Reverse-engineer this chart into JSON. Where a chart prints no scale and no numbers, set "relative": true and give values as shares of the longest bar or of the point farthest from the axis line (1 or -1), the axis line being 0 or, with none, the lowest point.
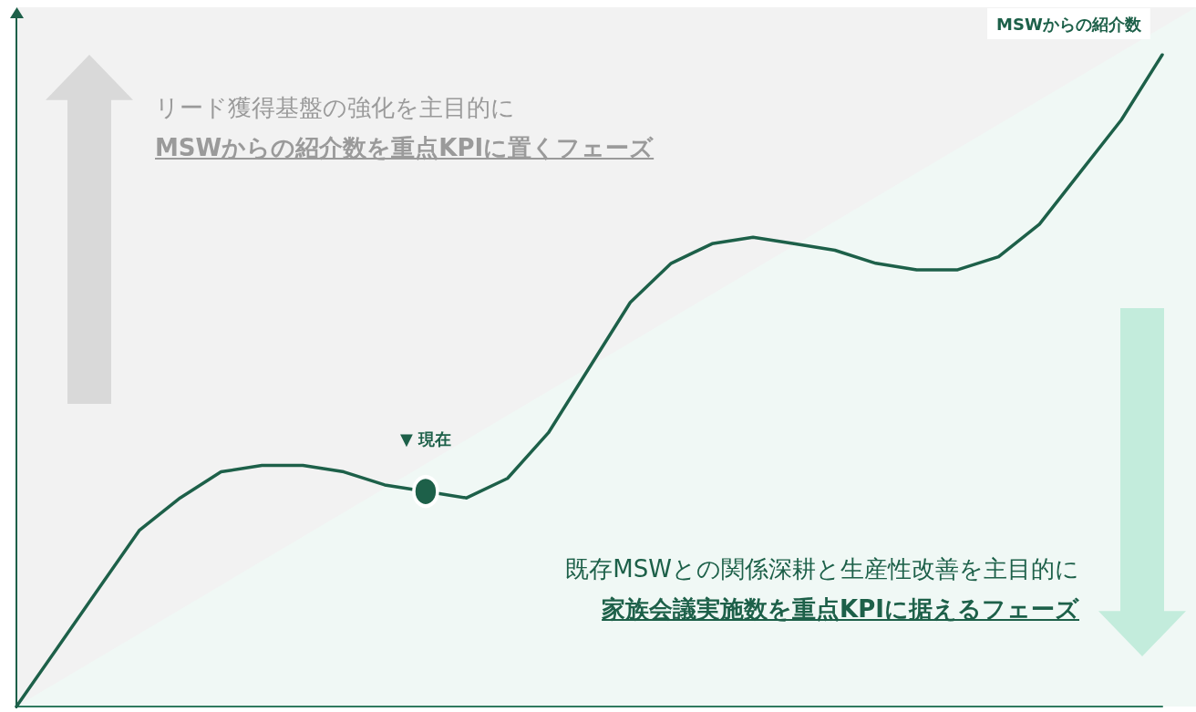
{
  "chart_data": {
    "type": "line",
    "relative": true,
    "categories": [
      null,
      null,
      null,
      null,
      null,
      null,
      null,
      null,
      null,
      null,
      null,
      null,
      null,
      null,
      null,
      null,
      null,
      null,
      null,
      null,
      null,
      null,
      null,
      null,
      null,
      null,
      null,
      null,
      null
    ],
    "series": [
      {
        "name": "MSWからの紹介数",
        "color": "#1d6049",
        "values": [
          0,
          0.09,
          0.18,
          0.27,
          0.32,
          0.36,
          0.37,
          0.37,
          0.36,
          0.34,
          0.33,
          0.32,
          0.35,
          0.42,
          0.52,
          0.62,
          0.68,
          0.71,
          0.72,
          0.71,
          0.7,
          0.68,
          0.67,
          0.67,
          0.69,
          0.74,
          0.82,
          0.9,
          1
        ]
      }
    ],
    "marker": "none",
    "grid": false,
    "legend": false,
    "annotations": [
      {
        "text": "▼ 現在",
        "y": 0.33
      },
      "リード獲得基盤の強化を主目的に",
      "MSWからの紹介数を重点KPIに置くフェーズ",
      "既存MSWとの関係深耕と生産性改善を主目的に",
      "家族会議実施数を重点KPIに据えるフェーズ"
    ]
  }
}
